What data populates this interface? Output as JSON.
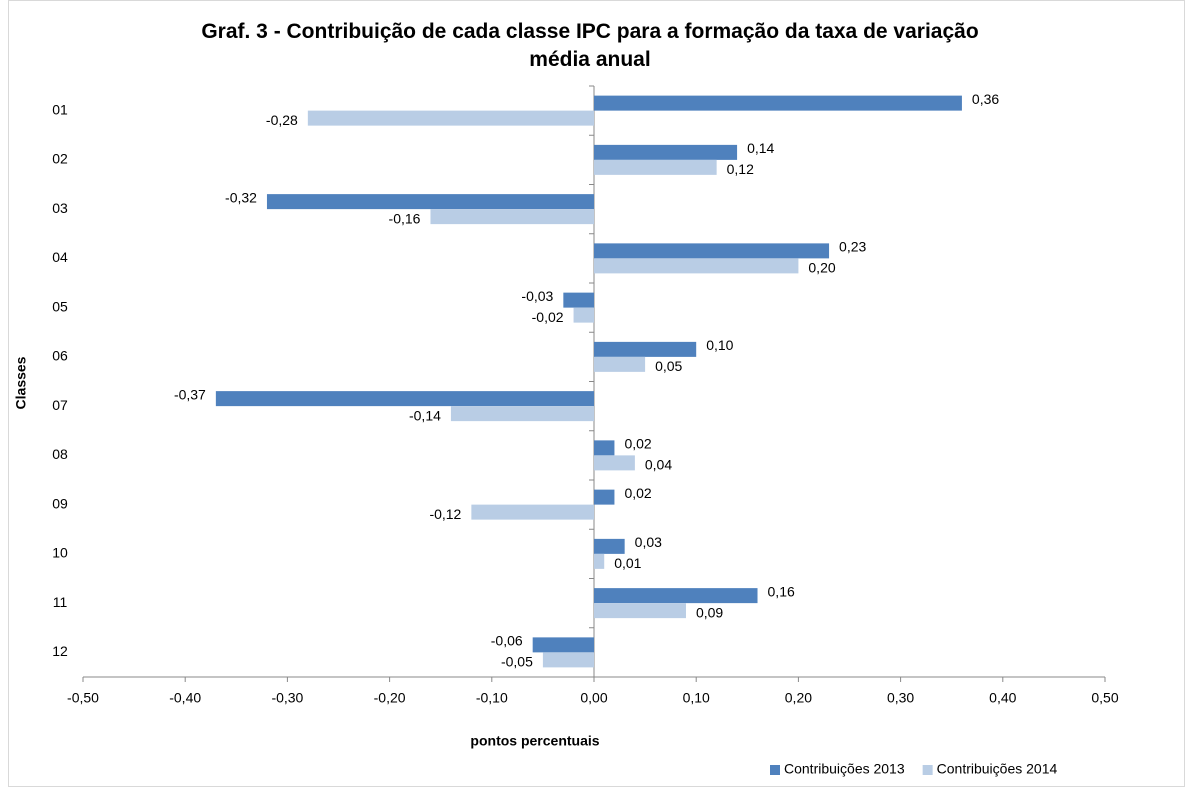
{
  "chart_data": {
    "type": "hbar",
    "title": "Graf. 3 - Contribuição de cada classe IPC para a formação da taxa de variação média anual",
    "x_label": "pontos percentuais",
    "y_label": "Classes",
    "categories": [
      "01",
      "02",
      "03",
      "04",
      "05",
      "06",
      "07",
      "08",
      "09",
      "10",
      "11",
      "12"
    ],
    "series": [
      {
        "name": "Contribuições 2013",
        "color": "#4f81bd",
        "values": [
          0.36,
          0.14,
          -0.32,
          0.23,
          -0.03,
          0.1,
          -0.37,
          0.02,
          0.02,
          0.03,
          0.16,
          -0.06
        ],
        "value_labels": [
          "0,36",
          "0,14",
          "-0,32",
          "0,23",
          "-0,03",
          "0,10",
          "-0,37",
          "0,02",
          "0,02",
          "0,03",
          "0,16",
          "-0,06"
        ]
      },
      {
        "name": "Contribuições 2014",
        "color": "#b9cde5",
        "values": [
          -0.28,
          0.12,
          -0.16,
          0.2,
          -0.02,
          0.05,
          -0.14,
          0.04,
          -0.12,
          0.01,
          0.09,
          -0.05
        ],
        "value_labels": [
          "-0,28",
          "0,12",
          "-0,16",
          "0,20",
          "-0,02",
          "0,05",
          "-0,14",
          "0,04",
          "-0,12",
          "0,01",
          "0,09",
          "-0,05"
        ]
      }
    ],
    "xlim": [
      -0.5,
      0.5
    ],
    "xticks": [
      {
        "value": -0.5,
        "label": "-0,50"
      },
      {
        "value": -0.4,
        "label": "-0,40"
      },
      {
        "value": -0.3,
        "label": "-0,30"
      },
      {
        "value": -0.2,
        "label": "-0,20"
      },
      {
        "value": -0.1,
        "label": "-0,10"
      },
      {
        "value": 0,
        "label": "0,00"
      },
      {
        "value": 0.1,
        "label": "0,10"
      },
      {
        "value": 0.2,
        "label": "0,20"
      },
      {
        "value": 0.3,
        "label": "0,30"
      },
      {
        "value": 0.4,
        "label": "0,40"
      },
      {
        "value": 0.5,
        "label": "0,50"
      }
    ],
    "legend": "bottom-right"
  }
}
